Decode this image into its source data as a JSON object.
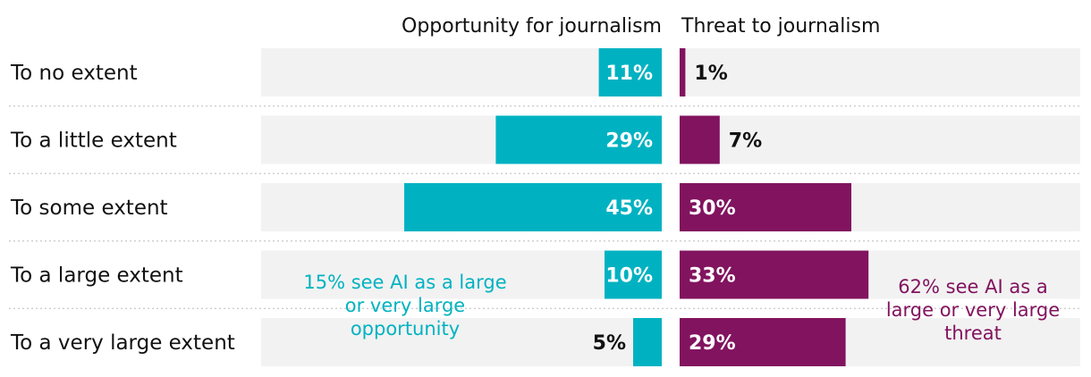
{
  "chart_data": {
    "type": "bar",
    "orientation": "horizontal",
    "layout": "diverging-two-panel",
    "categories": [
      "To no extent",
      "To a little extent",
      "To some extent",
      "To a large extent",
      "To a very large extent"
    ],
    "series": [
      {
        "name": "Opportunity for journalism",
        "values": [
          11,
          29,
          45,
          10,
          5
        ],
        "labels": [
          "11%",
          "29%",
          "45%",
          "10%",
          "5%"
        ],
        "color": "#00b2c1"
      },
      {
        "name": "Threat to journalism",
        "values": [
          1,
          7,
          30,
          33,
          29
        ],
        "labels": [
          "1%",
          "7%",
          "30%",
          "33%",
          "29%"
        ],
        "color": "#82135f"
      }
    ],
    "xlim": [
      0,
      70
    ],
    "annotations": [
      {
        "series": "Opportunity for journalism",
        "lines": [
          "15% see AI as a large",
          "or very large",
          "opportunity"
        ],
        "color": "#00b2c1"
      },
      {
        "series": "Threat to journalism",
        "lines": [
          "62% see AI as a",
          "large or very large",
          "threat"
        ],
        "color": "#82135f"
      }
    ],
    "colors": {
      "background_band": "#f2f2f2",
      "divider": "#c8c8c8",
      "label_inside": "#ffffff",
      "label_outside": "#111111"
    }
  }
}
